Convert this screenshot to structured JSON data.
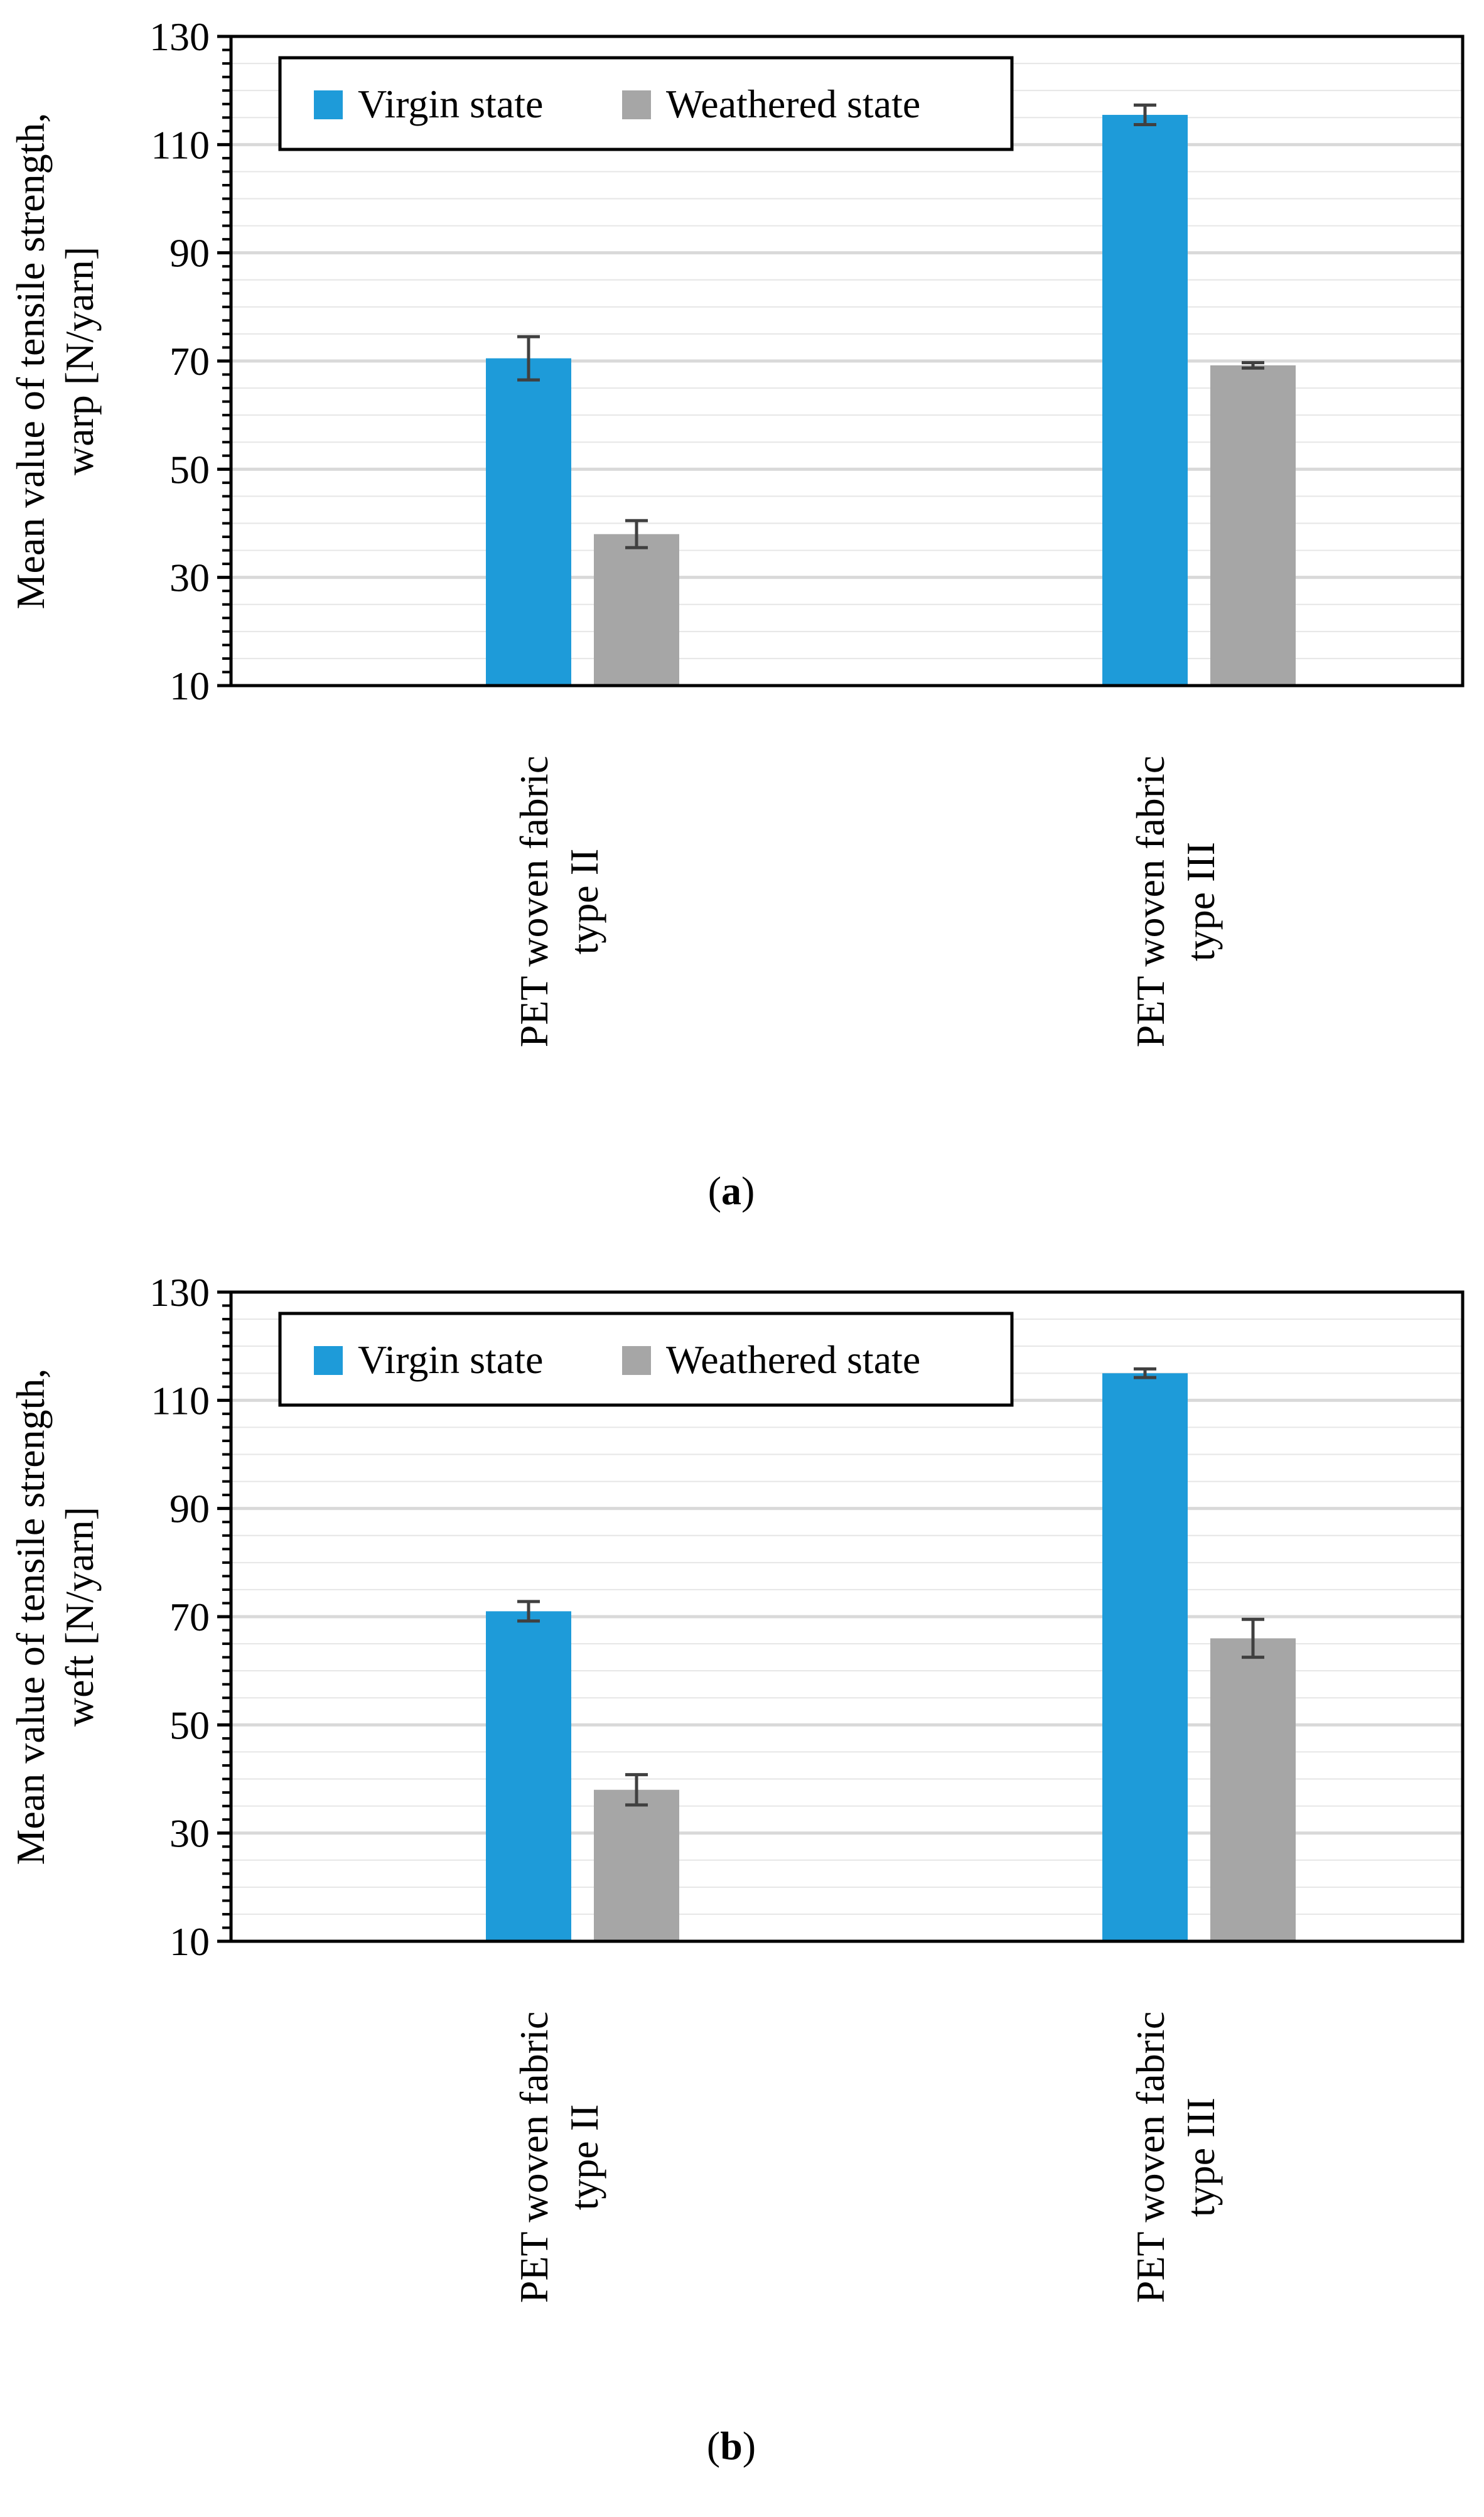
{
  "colors": {
    "virgin": "#1e9bd9",
    "weathered": "#a6a6a6",
    "grid": "#d9d9d9",
    "axis": "#000000",
    "errorbar": "#404040"
  },
  "chart_data": [
    {
      "type": "bar",
      "panel_label": "a",
      "categories": [
        [
          "PET woven fabric",
          "type II"
        ],
        [
          "PET woven fabric",
          "type III"
        ]
      ],
      "series": [
        {
          "name": "Virgin state",
          "values": [
            70.5,
            115.5
          ],
          "errors": [
            4.0,
            1.8
          ]
        },
        {
          "name": "Weathered state",
          "values": [
            38.0,
            69.2
          ],
          "errors": [
            2.5,
            0.5
          ]
        }
      ],
      "ylabel": [
        "Mean value of tensile strength,",
        "warp [N/yarn]"
      ],
      "ylim": [
        10,
        130
      ],
      "yticks": [
        10,
        30,
        50,
        70,
        90,
        110,
        130
      ],
      "grid": true,
      "legend": "top-left"
    },
    {
      "type": "bar",
      "panel_label": "b",
      "categories": [
        [
          "PET woven fabric",
          "type II"
        ],
        [
          "PET woven fabric",
          "type III"
        ]
      ],
      "series": [
        {
          "name": "Virgin state",
          "values": [
            71.0,
            115.0
          ],
          "errors": [
            1.8,
            0.8
          ]
        },
        {
          "name": "Weathered state",
          "values": [
            38.0,
            66.0
          ],
          "errors": [
            2.8,
            3.5
          ]
        }
      ],
      "ylabel": [
        "Mean value of tensile strength,",
        "weft [N/yarn]"
      ],
      "ylim": [
        10,
        130
      ],
      "yticks": [
        10,
        30,
        50,
        70,
        90,
        110,
        130
      ],
      "grid": true,
      "legend": "top-left"
    }
  ]
}
